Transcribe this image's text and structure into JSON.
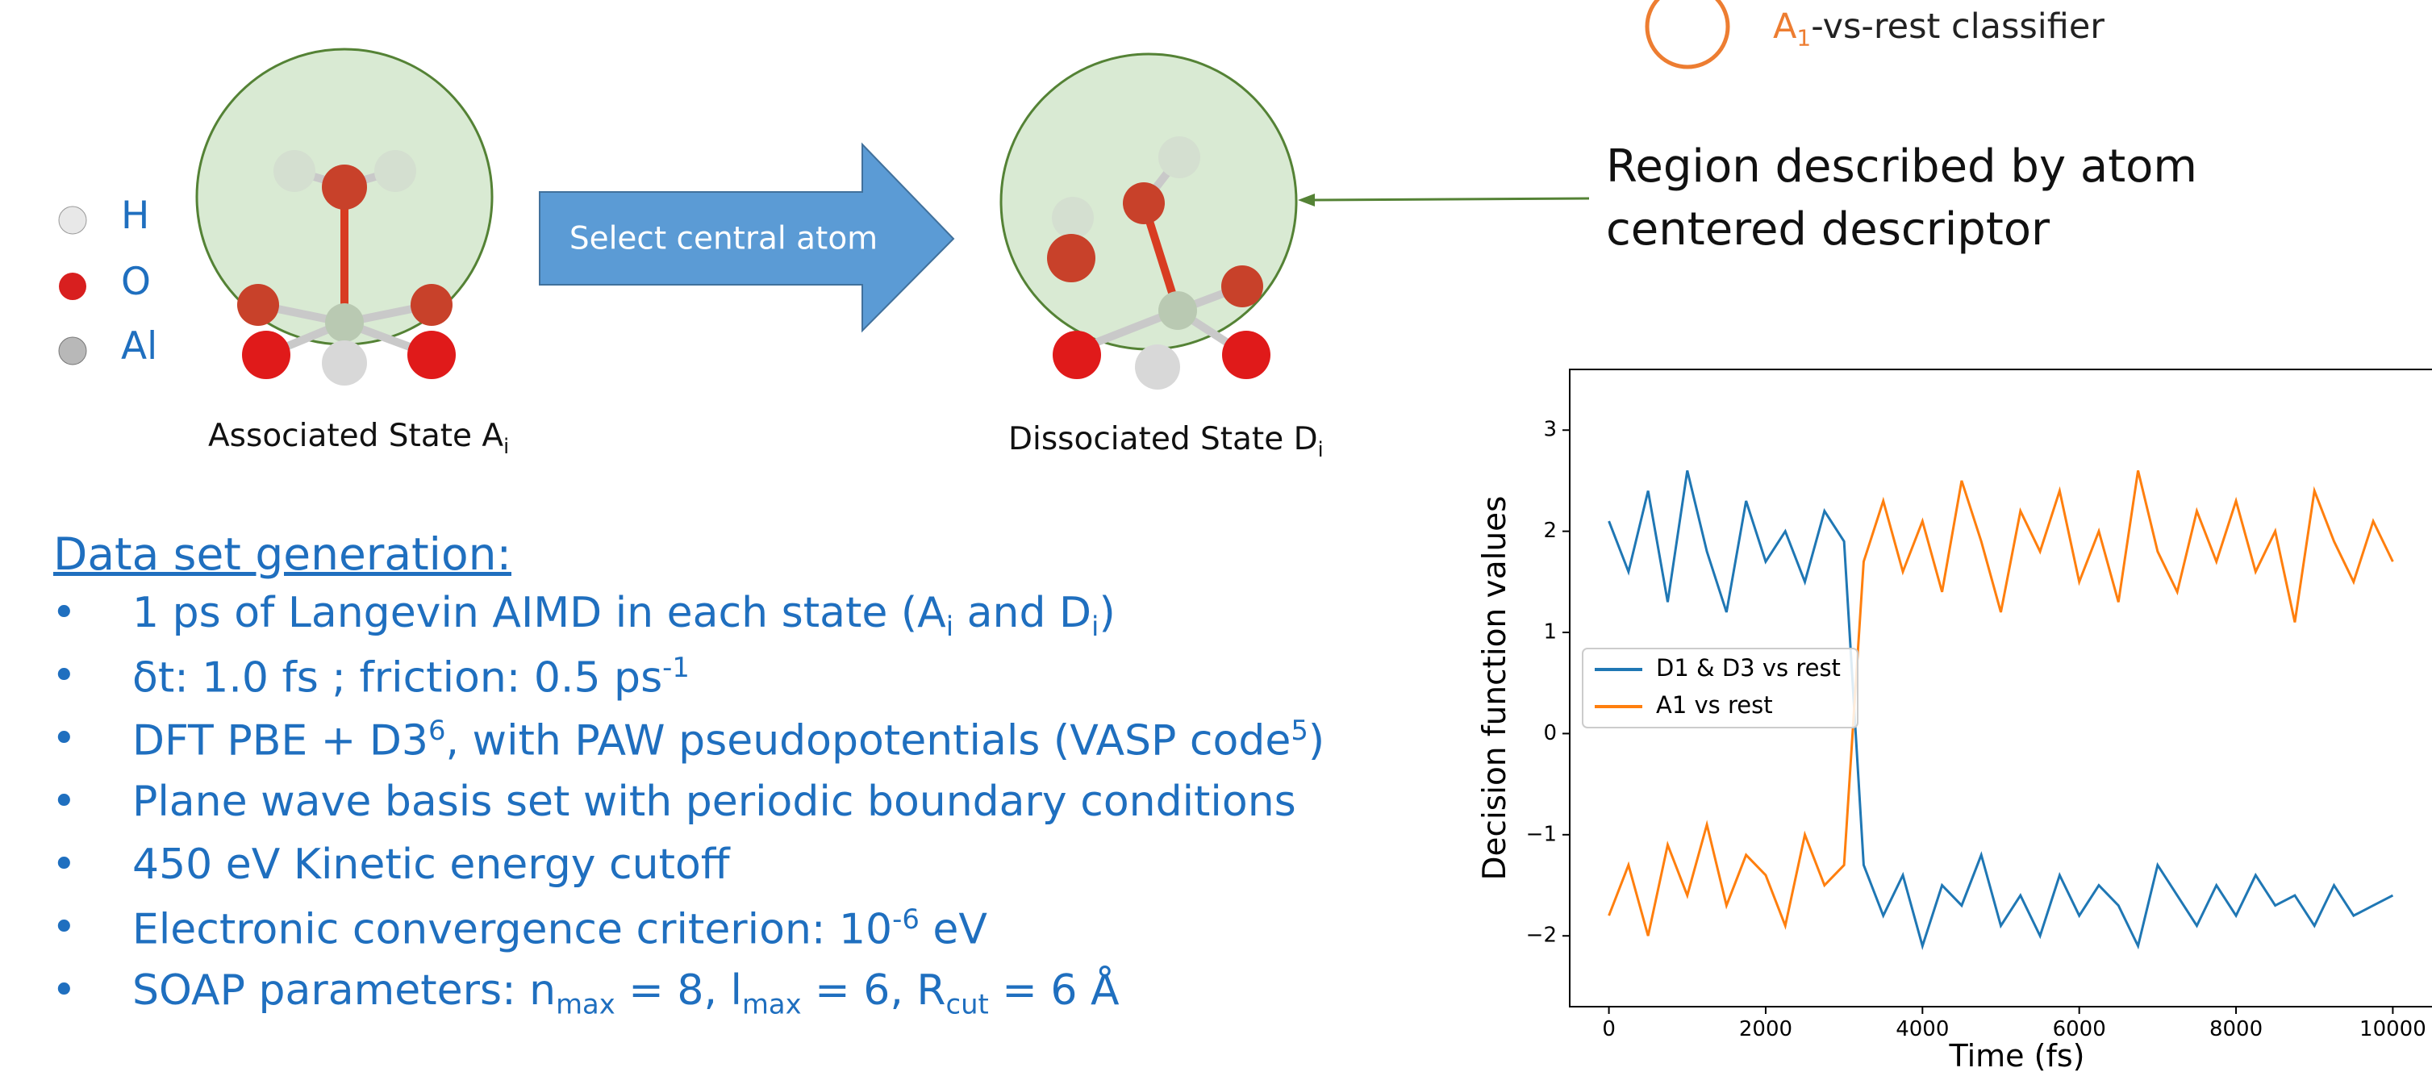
{
  "classifier_legend": [
    {
      "text": "A"
    },
    {
      "sub": "1"
    },
    {
      "text": "-vs-rest classifier"
    }
  ],
  "atoms": [
    "H",
    "O",
    "Al"
  ],
  "associated_label": [
    {
      "text": "Associated State A"
    },
    {
      "sub": "i"
    }
  ],
  "arrow_label": "Select central atom",
  "dissociated_label": [
    {
      "text": "Dissociated State D"
    },
    {
      "sub": "i"
    }
  ],
  "annotation": "Region described by atom centered descriptor",
  "dataset": {
    "heading": "Data set generation:",
    "bullets": [
      [
        {
          "text": "1 ps of Langevin AIMD in each state (A"
        },
        {
          "sub": "i"
        },
        {
          "text": " and D"
        },
        {
          "sub": "i"
        },
        {
          "text": ")"
        }
      ],
      [
        {
          "text": "δt: 1.0 fs ; friction:  0.5 ps"
        },
        {
          "sup": "-1"
        }
      ],
      [
        {
          "text": "DFT PBE + D3"
        },
        {
          "sup": "6"
        },
        {
          "text": ", with PAW pseudopotentials (VASP code"
        },
        {
          "sup": "5"
        },
        {
          "text": ")"
        }
      ],
      [
        {
          "text": "Plane wave basis set with periodic boundary conditions"
        }
      ],
      [
        {
          "text": "450 eV Kinetic energy cutoff"
        }
      ],
      [
        {
          "text": "Electronic convergence criterion: 10"
        },
        {
          "sup": "-6"
        },
        {
          "text": " eV"
        }
      ],
      [
        {
          "text": "SOAP parameters: n"
        },
        {
          "sub": "max"
        },
        {
          "text": " = 8, l"
        },
        {
          "sub": "max"
        },
        {
          "text": " = 6, R"
        },
        {
          "sub": "cut"
        },
        {
          "text": " = 6 Å"
        }
      ]
    ]
  },
  "chart_data": {
    "type": "line",
    "xlabel": "Time (fs)",
    "ylabel": "Decision function values",
    "x": [
      0,
      250,
      500,
      750,
      1000,
      1250,
      1500,
      1750,
      2000,
      2250,
      2500,
      2750,
      3000,
      3250,
      3500,
      3750,
      4000,
      4250,
      4500,
      4750,
      5000,
      5250,
      5500,
      5750,
      6000,
      6250,
      6500,
      6750,
      7000,
      7250,
      7500,
      7750,
      8000,
      8250,
      8500,
      8750,
      9000,
      9250,
      9500,
      9750,
      10000
    ],
    "series": [
      {
        "name": "D1 & D3 vs rest",
        "color": "#1f77b4",
        "values": [
          2.1,
          1.6,
          2.4,
          1.3,
          2.6,
          1.8,
          1.2,
          2.3,
          1.7,
          2.0,
          1.5,
          2.2,
          1.9,
          -1.3,
          -1.8,
          -1.4,
          -2.1,
          -1.5,
          -1.7,
          -1.2,
          -1.9,
          -1.6,
          -2.0,
          -1.4,
          -1.8,
          -1.5,
          -1.7,
          -2.1,
          -1.3,
          -1.6,
          -1.9,
          -1.5,
          -1.8,
          -1.4,
          -1.7,
          -1.6,
          -1.9,
          -1.5,
          -1.8,
          -1.7,
          -1.6
        ]
      },
      {
        "name": "A1 vs rest",
        "color": "#ff7f0e",
        "values": [
          -1.8,
          -1.3,
          -2.0,
          -1.1,
          -1.6,
          -0.9,
          -1.7,
          -1.2,
          -1.4,
          -1.9,
          -1.0,
          -1.5,
          -1.3,
          1.7,
          2.3,
          1.6,
          2.1,
          1.4,
          2.5,
          1.9,
          1.2,
          2.2,
          1.8,
          2.4,
          1.5,
          2.0,
          1.3,
          2.6,
          1.8,
          1.4,
          2.2,
          1.7,
          2.3,
          1.6,
          2.0,
          1.1,
          2.4,
          1.9,
          1.5,
          2.1,
          1.7
        ]
      }
    ],
    "xlim": [
      -500,
      10500
    ],
    "ylim": [
      -2.7,
      3.6
    ],
    "xticks": [
      0,
      2000,
      4000,
      6000,
      8000,
      10000
    ],
    "yticks": [
      {
        "value": -2,
        "label": "−2"
      },
      {
        "value": -1,
        "label": "−1"
      },
      0,
      1,
      2,
      3
    ],
    "legend": "center left",
    "grid": false
  }
}
